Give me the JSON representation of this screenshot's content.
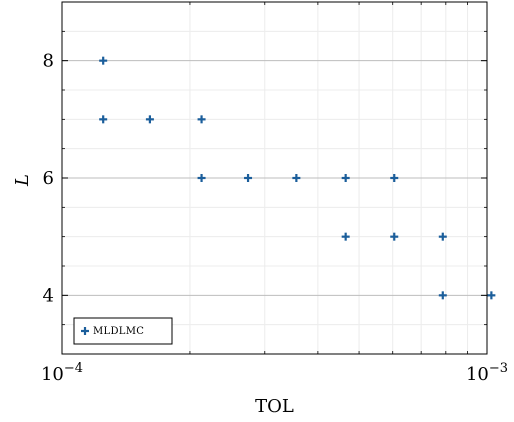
{
  "chart_data": {
    "type": "scatter",
    "title": "",
    "xlabel": "TOL",
    "ylabel": "L",
    "x_scale": "log",
    "xlim": [
      0.0001,
      0.001
    ],
    "ylim": [
      3,
      9
    ],
    "grid": true,
    "legend_position": "bottom-left",
    "x_ticks": [
      {
        "value": 0.0001,
        "base": "10",
        "exp": "−4"
      },
      {
        "value": 0.001,
        "base": "10",
        "exp": "−3"
      }
    ],
    "y_ticks": [
      {
        "value": 4,
        "label": "4"
      },
      {
        "value": 6,
        "label": "6"
      },
      {
        "value": 8,
        "label": "8"
      }
    ],
    "series": [
      {
        "name": "MLDLMC",
        "color": "#1b5e9b",
        "marker": "plus",
        "points": [
          {
            "x": 0.000125,
            "y": 8
          },
          {
            "x": 0.000125,
            "y": 7
          },
          {
            "x": 0.000161,
            "y": 7
          },
          {
            "x": 0.000213,
            "y": 7
          },
          {
            "x": 0.000213,
            "y": 6
          },
          {
            "x": 0.000274,
            "y": 6
          },
          {
            "x": 0.000356,
            "y": 6
          },
          {
            "x": 0.000465,
            "y": 6
          },
          {
            "x": 0.000605,
            "y": 6
          },
          {
            "x": 0.000465,
            "y": 5
          },
          {
            "x": 0.000605,
            "y": 5
          },
          {
            "x": 0.000787,
            "y": 5
          },
          {
            "x": 0.000787,
            "y": 4
          },
          {
            "x": 0.001024,
            "y": 4
          }
        ]
      }
    ]
  }
}
